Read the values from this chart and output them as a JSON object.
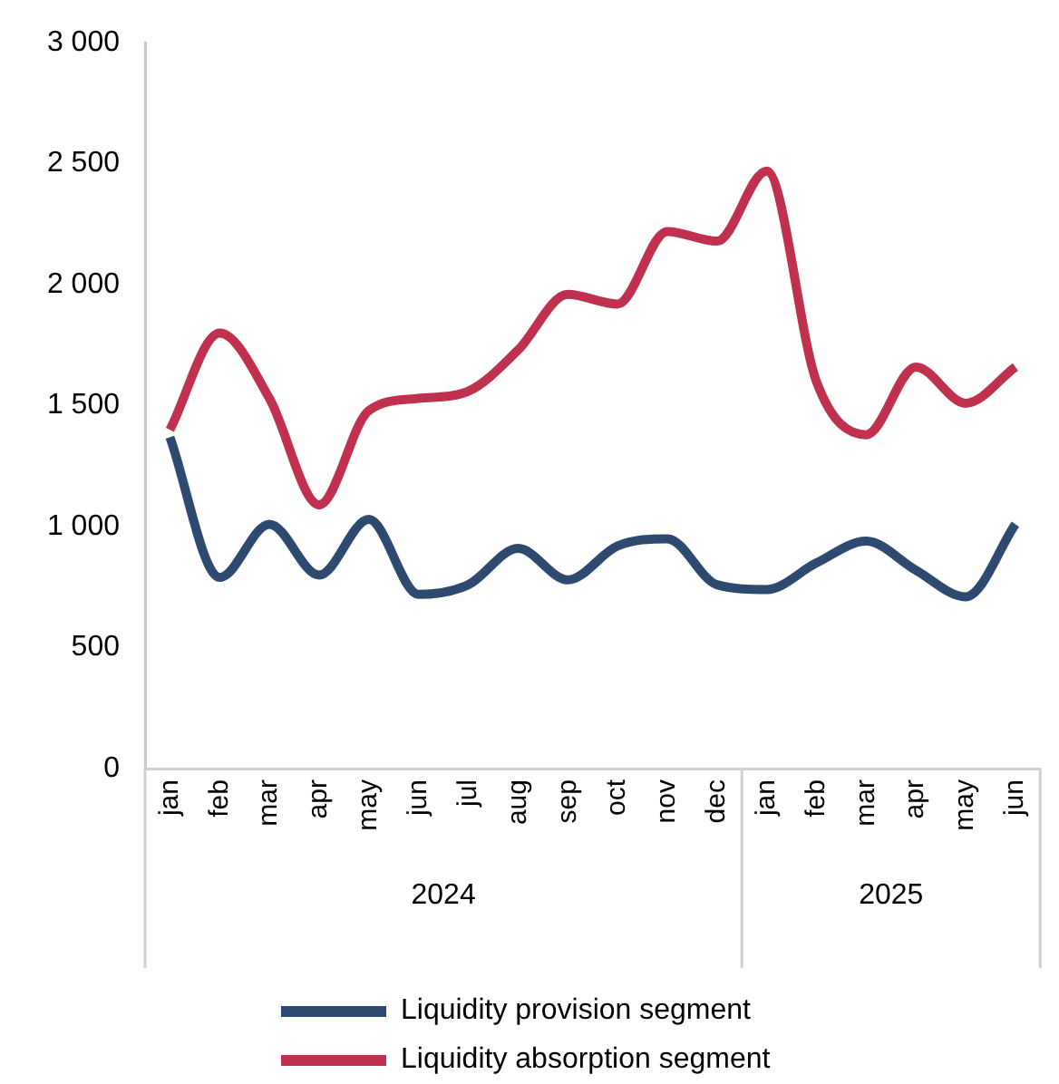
{
  "chart_data": {
    "type": "line",
    "categories": [
      "jan",
      "feb",
      "mar",
      "apr",
      "may",
      "jun",
      "jul",
      "aug",
      "sep",
      "oct",
      "nov",
      "dec",
      "jan",
      "feb",
      "mar",
      "apr",
      "may",
      "jun"
    ],
    "series": [
      {
        "name": "Liquidity provision segment",
        "color": "#2e4a70",
        "values": [
          1370,
          790,
          1010,
          800,
          1030,
          720,
          760,
          910,
          780,
          920,
          950,
          760,
          740,
          850,
          940,
          820,
          710,
          1010
        ]
      },
      {
        "name": "Liquidity absorption segment",
        "color": "#c0304f",
        "values": [
          1400,
          1800,
          1530,
          1090,
          1480,
          1530,
          1560,
          1730,
          1960,
          1920,
          2220,
          2180,
          2470,
          1600,
          1380,
          1660,
          1510,
          1660
        ]
      }
    ],
    "ylim": [
      0,
      3000
    ],
    "yticks": [
      0,
      500,
      {
        "value": 1000,
        "label": "1 000"
      },
      {
        "value": 1500,
        "label": "1 500"
      },
      {
        "value": 2000,
        "label": "2 000"
      },
      {
        "value": 2500,
        "label": "2 500"
      },
      {
        "value": 3000,
        "label": "3 000"
      }
    ],
    "annotations": [
      "2024",
      "2025"
    ],
    "grid": false,
    "legend": "bottom",
    "marker": "none",
    "line_style": "solid"
  }
}
